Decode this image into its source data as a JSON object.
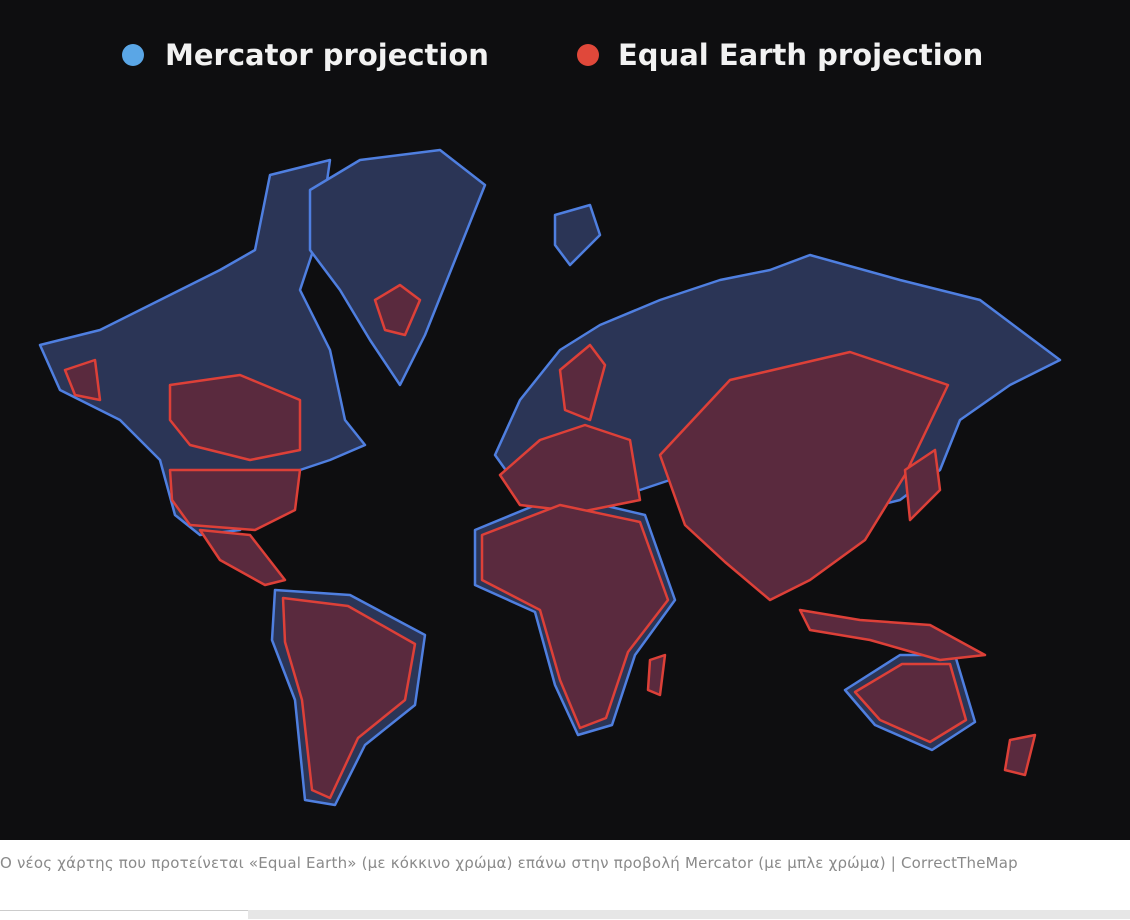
{
  "legend": [
    {
      "label": "Mercator projection",
      "color": "#5aa6e6"
    },
    {
      "label": "Equal Earth projection",
      "color": "#e0483a"
    }
  ],
  "caption": "Ο νέος χάρτης που προτείνεται «Equal Earth» (με κόκκινο χρώμα) επάνω στην προβολή Mercator (με μπλε χρώμα) | CorrectTheMap"
}
